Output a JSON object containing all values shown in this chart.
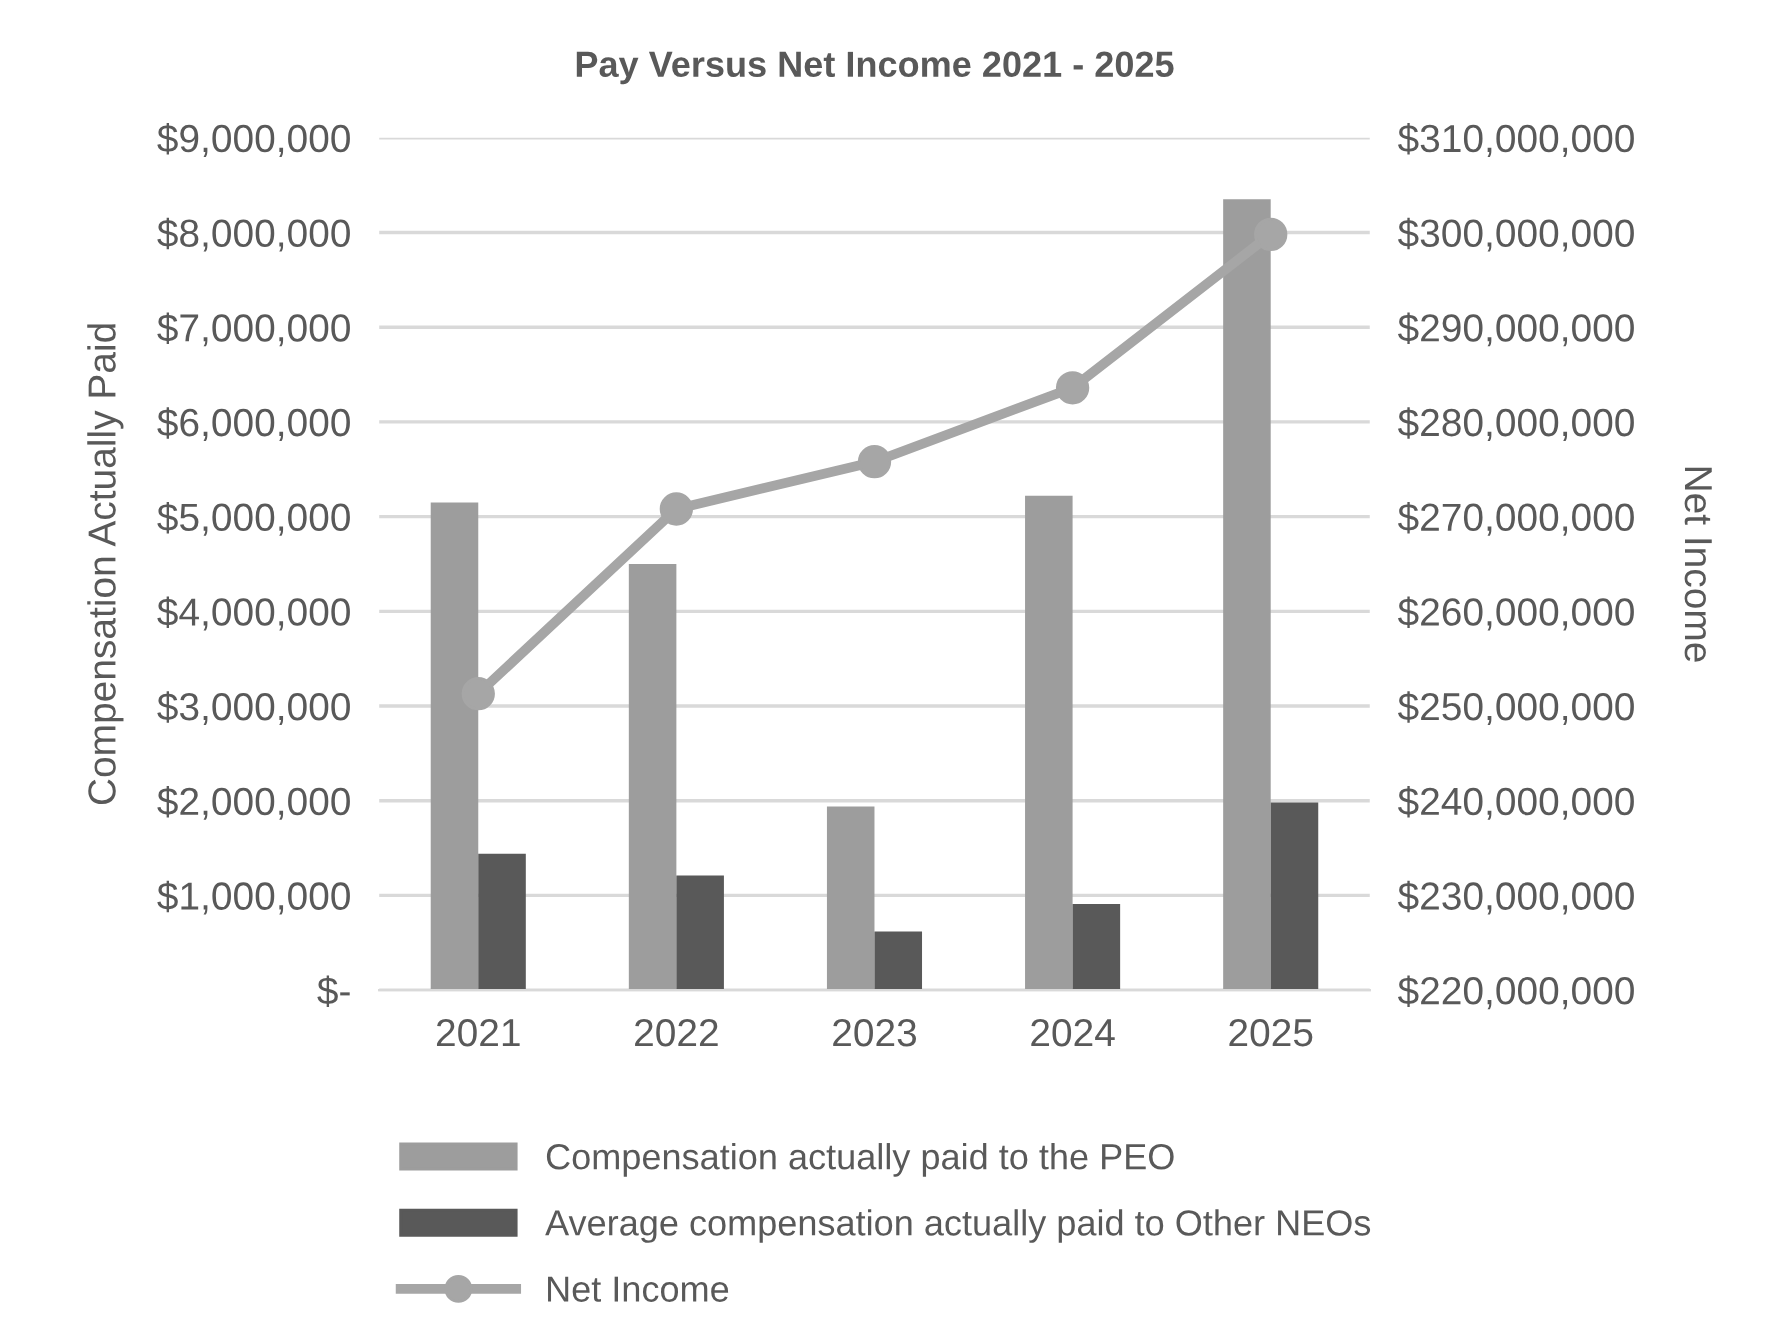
{
  "chart_data": {
    "type": "bar",
    "title": "Pay Versus Net Income 2021 - 2025",
    "ylabel": "Compensation Actually Paid",
    "y2label": "Net Income",
    "categories": [
      "2021",
      "2022",
      "2023",
      "2024",
      "2025"
    ],
    "series": [
      {
        "name": "Compensation actually paid to the PEO",
        "color": "#9d9d9d",
        "values": [
          5150000,
          4500000,
          1940000,
          5220000,
          8350000
        ]
      },
      {
        "name": "Average compensation actually paid to Other NEOs",
        "color": "#595959",
        "values": [
          1440000,
          1210000,
          620000,
          910000,
          1980000
        ]
      },
      {
        "name": "Net Income",
        "type": "line",
        "axis": "y2",
        "color": "#a6a6a6",
        "marker": "circle",
        "line_style": "solid",
        "values": [
          251300000,
          270800000,
          275800000,
          283600000,
          299800000
        ]
      }
    ],
    "ylim": [
      0,
      9000000
    ],
    "yticks": [
      {
        "value": 0,
        "label": "$-"
      },
      {
        "value": 1000000,
        "label": "$1,000,000"
      },
      {
        "value": 2000000,
        "label": "$2,000,000"
      },
      {
        "value": 3000000,
        "label": "$3,000,000"
      },
      {
        "value": 4000000,
        "label": "$4,000,000"
      },
      {
        "value": 5000000,
        "label": "$5,000,000"
      },
      {
        "value": 6000000,
        "label": "$6,000,000"
      },
      {
        "value": 7000000,
        "label": "$7,000,000"
      },
      {
        "value": 8000000,
        "label": "$8,000,000"
      },
      {
        "value": 9000000,
        "label": "$9,000,000"
      }
    ],
    "y2lim": [
      220000000,
      310000000
    ],
    "y2ticks": [
      {
        "value": 220000000,
        "label": "$220,000,000"
      },
      {
        "value": 230000000,
        "label": "$230,000,000"
      },
      {
        "value": 240000000,
        "label": "$240,000,000"
      },
      {
        "value": 250000000,
        "label": "$250,000,000"
      },
      {
        "value": 260000000,
        "label": "$260,000,000"
      },
      {
        "value": 270000000,
        "label": "$270,000,000"
      },
      {
        "value": 280000000,
        "label": "$280,000,000"
      },
      {
        "value": 290000000,
        "label": "$290,000,000"
      },
      {
        "value": 300000000,
        "label": "$300,000,000"
      },
      {
        "value": 310000000,
        "label": "$310,000,000"
      }
    ],
    "grid": "y",
    "legend": "bottom"
  }
}
